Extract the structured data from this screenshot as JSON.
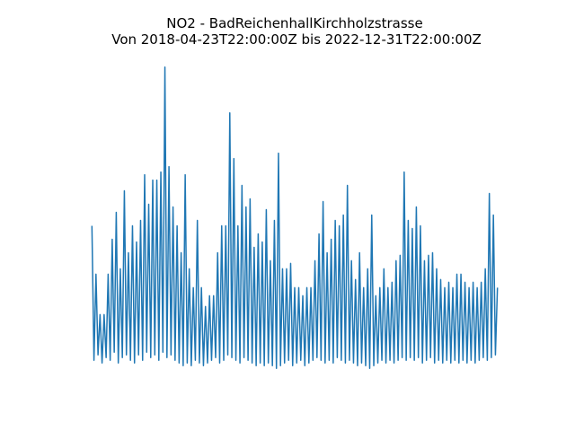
{
  "chart_data": {
    "type": "line",
    "title": "NO2 - BadReichenhallKirchholzstrasse",
    "subtitle": "Von 2018-04-23T22:00:00Z bis 2022-12-31T22:00:00Z",
    "color": "#1f77b4",
    "ylim": [
      -5.6,
      117.6
    ],
    "values": [
      53,
      3,
      35,
      5,
      20,
      2,
      20,
      4,
      35,
      3,
      48,
      6,
      58,
      2,
      37,
      4,
      66,
      5,
      43,
      3,
      53,
      2,
      47,
      5,
      55,
      3,
      72,
      6,
      61,
      4,
      70,
      5,
      70,
      3,
      73,
      6,
      112,
      4,
      75,
      5,
      60,
      3,
      53,
      2,
      43,
      1,
      72,
      2,
      37,
      1,
      30,
      3,
      55,
      2,
      30,
      1,
      23,
      2,
      27,
      3,
      27,
      4,
      43,
      2,
      53,
      3,
      53,
      5,
      95,
      4,
      78,
      3,
      53,
      2,
      68,
      4,
      60,
      3,
      63,
      2,
      45,
      1,
      50,
      2,
      47,
      1,
      59,
      2,
      40,
      1,
      55,
      0,
      80,
      1,
      37,
      2,
      37,
      3,
      39,
      1,
      30,
      2,
      30,
      3,
      27,
      1,
      30,
      2,
      30,
      3,
      40,
      4,
      50,
      3,
      62,
      2,
      43,
      3,
      48,
      2,
      55,
      4,
      53,
      3,
      57,
      2,
      68,
      3,
      40,
      2,
      33,
      1,
      43,
      2,
      30,
      1,
      37,
      0,
      57,
      1,
      27,
      2,
      30,
      3,
      37,
      2,
      30,
      3,
      32,
      2,
      40,
      3,
      42,
      4,
      73,
      3,
      55,
      4,
      52,
      3,
      60,
      4,
      53,
      2,
      40,
      3,
      42,
      4,
      43,
      2,
      37,
      3,
      33,
      2,
      30,
      3,
      32,
      2,
      30,
      3,
      35,
      2,
      35,
      3,
      32,
      2,
      30,
      3,
      32,
      2,
      30,
      3,
      32,
      4,
      37,
      3,
      65,
      4,
      57,
      5,
      30
    ]
  }
}
